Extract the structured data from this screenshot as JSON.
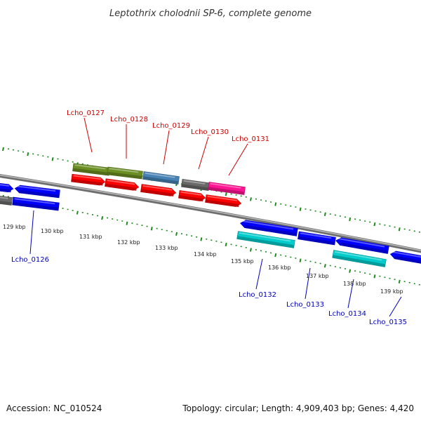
{
  "title": "Leptothrix cholodnii SP-6, complete genome",
  "footer": {
    "accession": "Accession: NC_010524",
    "summary": "Topology: circular; Length: 4,909,403 bp; Genes: 4,420"
  },
  "colors": {
    "backbone": "#8c8c8c",
    "tick": "#1f8a1f",
    "forward_label": "#cc0000",
    "reverse_label": "#0000bb"
  },
  "chart_data": {
    "type": "genome-map",
    "position_labels": [
      "129 kbp",
      "130 kbp",
      "131 kbp",
      "132 kbp",
      "133 kbp",
      "134 kbp",
      "135 kbp",
      "136 kbp",
      "137 kbp",
      "138 kbp",
      "139 kbp"
    ],
    "forward_genes": [
      {
        "label": "Lcho_0127",
        "color": "#6b8e23"
      },
      {
        "label": "Lcho_0128",
        "color": "#6b8e23"
      },
      {
        "label": "Lcho_0129",
        "color": "#4682b4"
      },
      {
        "label": "Lcho_0130",
        "color": "#696969"
      },
      {
        "label": "Lcho_0131",
        "color": "#ff1493"
      }
    ],
    "reverse_genes": [
      {
        "label": "Lcho_0126",
        "color": "#0000ff"
      },
      {
        "label": "Lcho_0132",
        "color": "#00cccc"
      },
      {
        "label": "Lcho_0133",
        "color": "#0000ff"
      },
      {
        "label": "Lcho_0134",
        "color": "#00cccc"
      },
      {
        "label": "Lcho_0135",
        "color": "#0000ff"
      }
    ]
  }
}
